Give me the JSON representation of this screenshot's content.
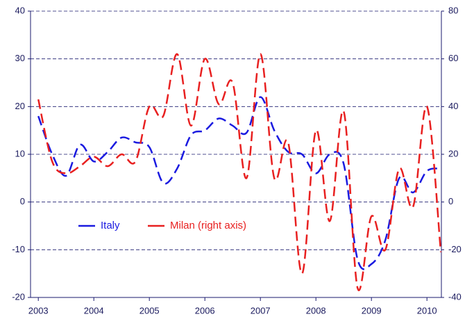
{
  "chart_data": {
    "type": "line",
    "x": [
      2003,
      2003.25,
      2003.5,
      2003.75,
      2004,
      2004.25,
      2004.5,
      2004.75,
      2005,
      2005.25,
      2005.5,
      2005.75,
      2006,
      2006.25,
      2006.5,
      2006.75,
      2007,
      2007.25,
      2007.5,
      2007.75,
      2008,
      2008.25,
      2008.5,
      2008.75,
      2009,
      2009.25,
      2009.5,
      2009.75,
      2010,
      2010.25
    ],
    "series": [
      {
        "name": "Italy",
        "color": "#1a1ae0",
        "values": [
          18,
          10,
          5.5,
          12,
          8.5,
          10.5,
          13.5,
          12.5,
          11.5,
          4,
          7,
          14,
          15,
          17.5,
          16,
          14.5,
          22,
          15,
          10.5,
          10,
          6,
          10,
          8,
          -12,
          -13,
          -8,
          5,
          2,
          6.5,
          7
        ]
      },
      {
        "name": "Milan (right axis)",
        "color": "#e82020",
        "axis": "y2",
        "values": [
          43,
          17,
          12,
          15,
          19,
          15,
          20,
          17,
          40,
          36,
          62,
          32,
          60,
          41,
          50,
          10,
          62,
          10,
          25,
          -30,
          30,
          -8,
          38,
          -36,
          -6,
          -20,
          14,
          -2,
          40,
          -21
        ]
      }
    ],
    "xlim": [
      2002.86,
      2010.26
    ],
    "xticks": [
      2003,
      2004,
      2005,
      2006,
      2007,
      2008,
      2009,
      2010
    ],
    "ylim": [
      -20,
      40
    ],
    "yticks": [
      -20,
      -10,
      0,
      10,
      20,
      30,
      40
    ],
    "y2lim": [
      -40,
      80
    ],
    "y2ticks": [
      -40,
      -20,
      0,
      20,
      40,
      60,
      80
    ],
    "grid": true,
    "legend": "center-left"
  }
}
